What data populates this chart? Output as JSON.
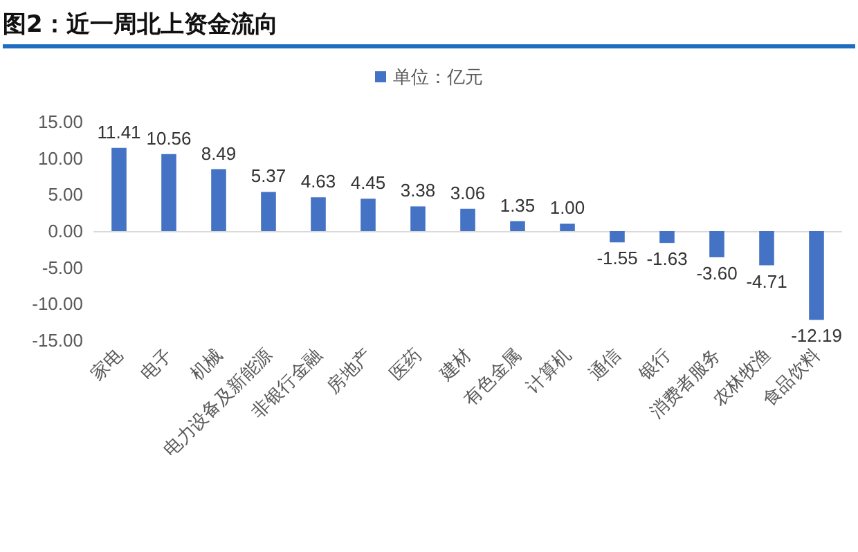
{
  "chart_data": {
    "type": "bar",
    "title": "图2：近一周北上资金流向",
    "categories": [
      "家电",
      "电子",
      "机械",
      "电力设备及新能源",
      "非银行金融",
      "房地产",
      "医药",
      "建材",
      "有色金属",
      "计算机",
      "通信",
      "银行",
      "消费者服务",
      "农林牧渔",
      "食品饮料"
    ],
    "series": [
      {
        "name": "单位：亿元",
        "color": "#4472c4",
        "values": [
          11.41,
          10.56,
          8.49,
          5.37,
          4.63,
          4.45,
          3.38,
          3.06,
          1.35,
          1.0,
          -1.55,
          -1.63,
          -3.6,
          -4.71,
          -12.19
        ],
        "value_labels": [
          "11.41",
          "10.56",
          "8.49",
          "5.37",
          "4.63",
          "4.45",
          "3.38",
          "3.06",
          "1.35",
          "1.00",
          "-1.55",
          "-1.63",
          "-3.60",
          "-4.71",
          "-12.19"
        ]
      }
    ],
    "ylim": [
      -15,
      15
    ],
    "yticks": [
      {
        "value": -15,
        "label": "-15.00"
      },
      {
        "value": -10,
        "label": "-10.00"
      },
      {
        "value": -5,
        "label": "-5.00"
      },
      {
        "value": 0,
        "label": "0.00"
      },
      {
        "value": 5,
        "label": "5.00"
      },
      {
        "value": 10,
        "label": "10.00"
      },
      {
        "value": 15,
        "label": "15.00"
      }
    ],
    "legend": "top"
  }
}
